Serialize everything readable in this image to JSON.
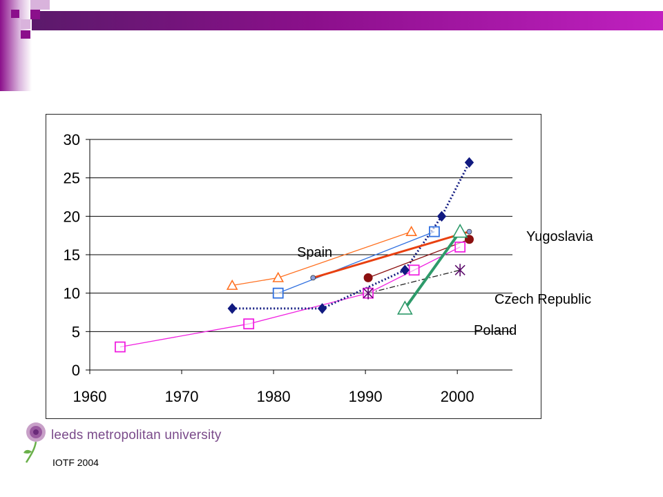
{
  "theme": {
    "banner_color": "#8b0f8b",
    "square_dark": "#8b0f8b",
    "square_light": "#d9b3dc"
  },
  "labels": {
    "spain": "Spain",
    "yugoslavia": "Yugoslavia",
    "czech": "Czech Republic",
    "poland": "Poland"
  },
  "logo": {
    "text": "leeds metropolitan university",
    "icon": "rose-logo-icon"
  },
  "credit": "IOTF 2004",
  "chart_data": {
    "type": "line",
    "title": "",
    "xlabel": "",
    "ylabel": "",
    "xlim": [
      1960,
      2006
    ],
    "ylim": [
      0,
      30
    ],
    "xticks": [
      1960,
      1970,
      1980,
      1990,
      2000
    ],
    "yticks": [
      0,
      5,
      10,
      15,
      20,
      25,
      30
    ],
    "grid": "horizontal",
    "series": [
      {
        "name": "",
        "color": "#ff7020",
        "marker": "triangle",
        "line": "solid",
        "width": 1.3,
        "points": [
          [
            1975.5,
            11
          ],
          [
            1980.5,
            12
          ],
          [
            1995,
            18
          ]
        ]
      },
      {
        "name": "",
        "color": "#3070e0",
        "marker": "square",
        "line": "solid",
        "width": 1.3,
        "points": [
          [
            1980.5,
            10
          ],
          [
            1997.5,
            18
          ]
        ]
      },
      {
        "name": "",
        "color": "#f020e0",
        "marker": "square",
        "line": "solid",
        "width": 1.3,
        "points": [
          [
            1963.3,
            3
          ],
          [
            1977.3,
            6
          ],
          [
            1990.3,
            10
          ],
          [
            1995.3,
            13
          ],
          [
            2000.3,
            16
          ]
        ]
      },
      {
        "name": "",
        "color": "#111a80",
        "marker": "diamond",
        "line": "dotted",
        "width": 3,
        "points": [
          [
            1975.5,
            8
          ],
          [
            1985.3,
            8
          ],
          [
            1994.3,
            13
          ],
          [
            1998.3,
            20
          ],
          [
            2001.3,
            27
          ]
        ]
      },
      {
        "name": "Spain",
        "color": "#e84010",
        "marker": "smallcircle",
        "line": "solid",
        "width": 3,
        "points": [
          [
            1984.3,
            12
          ],
          [
            2001.3,
            18
          ]
        ]
      },
      {
        "name": "Yugoslavia",
        "color": "#8b1010",
        "marker": "circle",
        "line": "solid",
        "width": 1.3,
        "points": [
          [
            1990.3,
            12
          ],
          [
            2001.3,
            17
          ]
        ]
      },
      {
        "name": "Czech Republic",
        "color": "#222222",
        "marker": "asterisk",
        "line": "dashdot",
        "width": 1.3,
        "points": [
          [
            1990.3,
            10
          ],
          [
            2000.3,
            13
          ]
        ]
      },
      {
        "name": "Poland",
        "color": "#2e9a6a",
        "marker": "triangle",
        "line": "solid",
        "width": 4,
        "points": [
          [
            1994.3,
            8
          ],
          [
            2000.3,
            18
          ]
        ]
      }
    ]
  }
}
